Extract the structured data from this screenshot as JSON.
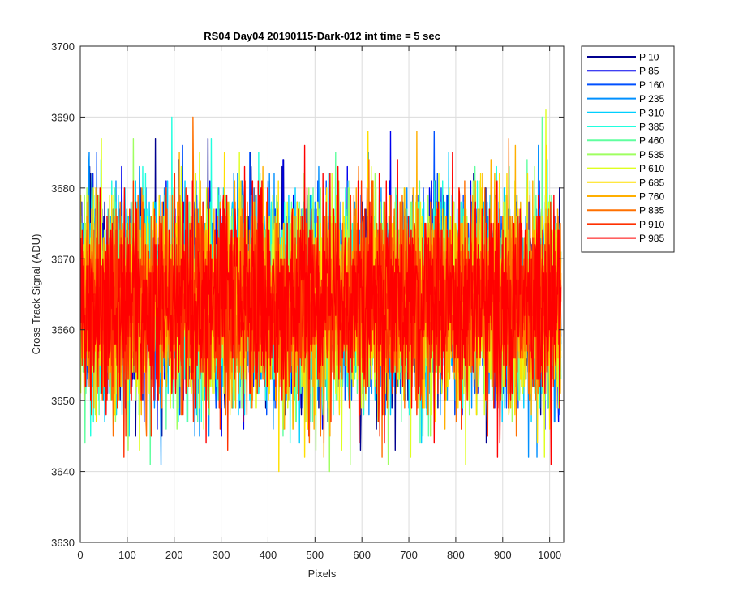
{
  "chart_data": {
    "type": "line",
    "title": "RS04 Day04 20190115-Dark-012 int time = 5 sec",
    "xlabel": "Pixels",
    "ylabel": "Cross Track Signal (ADU)",
    "xlim": [
      0,
      1030
    ],
    "ylim": [
      3630,
      3700
    ],
    "xticks": [
      0,
      100,
      200,
      300,
      400,
      500,
      600,
      700,
      800,
      900,
      1000
    ],
    "yticks": [
      3630,
      3640,
      3650,
      3660,
      3670,
      3680,
      3690,
      3700
    ],
    "grid": true,
    "legend_position": "outside-top-right",
    "x_points": "1..1024 (every pixel)",
    "signal_mean": 3664,
    "signal_min": 3637,
    "signal_max": 3694,
    "series": [
      {
        "name": "P 10",
        "color": "#00008F",
        "mean": 3664,
        "min": 3643,
        "max": 3692
      },
      {
        "name": "P 85",
        "color": "#0000EF",
        "mean": 3664,
        "min": 3641,
        "max": 3693
      },
      {
        "name": "P 160",
        "color": "#0050FF",
        "mean": 3664,
        "min": 3638,
        "max": 3692
      },
      {
        "name": "P 235",
        "color": "#0090FF",
        "mean": 3664,
        "min": 3639,
        "max": 3694
      },
      {
        "name": "P 310",
        "color": "#00CFFF",
        "mean": 3664,
        "min": 3637,
        "max": 3691
      },
      {
        "name": "P 385",
        "color": "#20FFDF",
        "mean": 3664,
        "min": 3642,
        "max": 3690
      },
      {
        "name": "P 460",
        "color": "#60FF9F",
        "mean": 3664,
        "min": 3641,
        "max": 3690
      },
      {
        "name": "P 535",
        "color": "#9FFF60",
        "mean": 3664,
        "min": 3640,
        "max": 3691
      },
      {
        "name": "P 610",
        "color": "#DFFF20",
        "mean": 3664,
        "min": 3639,
        "max": 3691
      },
      {
        "name": "P 685",
        "color": "#FFDF00",
        "mean": 3664,
        "min": 3640,
        "max": 3694
      },
      {
        "name": "P 760",
        "color": "#FFAF00",
        "mean": 3664,
        "min": 3642,
        "max": 3691
      },
      {
        "name": "P 835",
        "color": "#FF7000",
        "mean": 3664,
        "min": 3639,
        "max": 3690
      },
      {
        "name": "P 910",
        "color": "#FF3000",
        "mean": 3664,
        "min": 3640,
        "max": 3690
      },
      {
        "name": "P 985",
        "color": "#FF0000",
        "mean": 3664,
        "min": 3638,
        "max": 3689
      }
    ]
  }
}
